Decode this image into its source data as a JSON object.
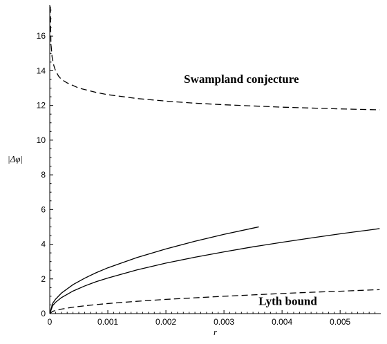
{
  "chart_data": {
    "type": "line",
    "xlabel": "r",
    "ylabel": "|Δφ|",
    "xlim": [
      0,
      0.0057
    ],
    "ylim": [
      0,
      17.8
    ],
    "x_ticks": [
      0,
      0.001,
      0.002,
      0.003,
      0.004,
      0.005
    ],
    "x_tick_labels": [
      "0",
      "0.001",
      "0.002",
      "0.003",
      "0.004",
      "0.005"
    ],
    "y_ticks": [
      0,
      2,
      4,
      6,
      8,
      10,
      12,
      14,
      16
    ],
    "y_tick_labels": [
      "0",
      "2",
      "4",
      "6",
      "8",
      "10",
      "12",
      "14",
      "16"
    ],
    "grid": false,
    "annotations": [
      {
        "text": "Swampland conjecture",
        "x": 0.0033,
        "y": 13.3
      },
      {
        "text": "Lyth bound",
        "x": 0.0041,
        "y": 0.5
      }
    ],
    "series": [
      {
        "style": "dashed",
        "x": [
          1e-05,
          2e-05,
          4e-05,
          7e-05,
          0.0001,
          0.00015,
          0.0002,
          0.0003,
          0.0005,
          0.0008,
          0.001,
          0.0015,
          0.002,
          0.0025,
          0.003,
          0.0035,
          0.004,
          0.0045,
          0.005,
          0.0055,
          0.00568
        ],
        "y": [
          17.7,
          15.6,
          14.8,
          14.3,
          14.0,
          13.7,
          13.5,
          13.3,
          13.0,
          12.75,
          12.62,
          12.4,
          12.25,
          12.13,
          12.04,
          11.97,
          11.9,
          11.85,
          11.8,
          11.76,
          11.75
        ]
      },
      {
        "style": "solid",
        "x": [
          0,
          5e-05,
          0.0001,
          0.0002,
          0.0004,
          0.0006,
          0.0008,
          0.001,
          0.0015,
          0.002,
          0.0025,
          0.003,
          0.0036
        ],
        "y": [
          0,
          0.59,
          0.83,
          1.18,
          1.67,
          2.04,
          2.36,
          2.64,
          3.23,
          3.73,
          4.17,
          4.57,
          5.0
        ]
      },
      {
        "style": "solid",
        "x": [
          0,
          5e-05,
          0.0001,
          0.0002,
          0.0004,
          0.0006,
          0.0008,
          0.001,
          0.0015,
          0.002,
          0.0025,
          0.003,
          0.0035,
          0.004,
          0.0045,
          0.005,
          0.0055,
          0.00568
        ],
        "y": [
          0,
          0.46,
          0.65,
          0.92,
          1.3,
          1.59,
          1.84,
          2.05,
          2.52,
          2.91,
          3.25,
          3.56,
          3.85,
          4.11,
          4.36,
          4.6,
          4.82,
          4.9
        ]
      },
      {
        "style": "dashed",
        "x": [
          0,
          5e-05,
          0.0001,
          0.0002,
          0.0004,
          0.0006,
          0.0008,
          0.001,
          0.0015,
          0.002,
          0.0025,
          0.003,
          0.0035,
          0.004,
          0.0045,
          0.005,
          0.0055,
          0.00568
        ],
        "y": [
          0,
          0.13,
          0.18,
          0.26,
          0.37,
          0.45,
          0.52,
          0.58,
          0.71,
          0.82,
          0.91,
          1.0,
          1.08,
          1.16,
          1.23,
          1.29,
          1.36,
          1.38
        ]
      }
    ]
  }
}
